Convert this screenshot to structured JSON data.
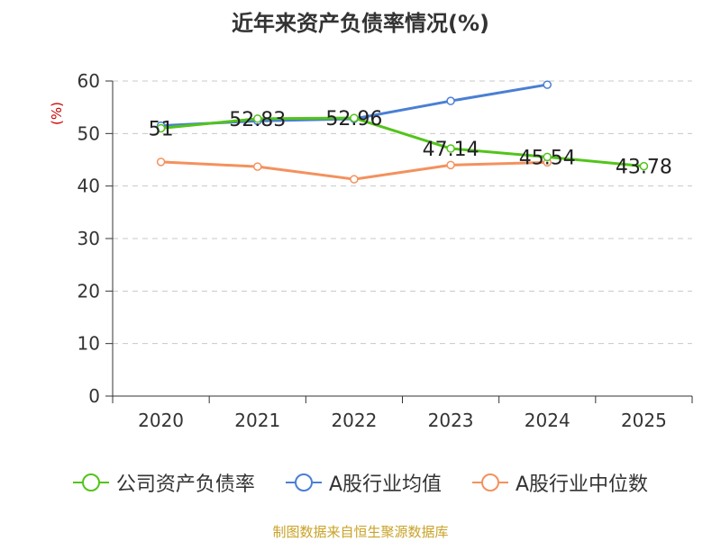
{
  "title": "近年来资产负债率情况(%)",
  "source": "制图数据来自恒生聚源数据库",
  "colors": {
    "company": "#52c41a",
    "industry_avg": "#4a7fd4",
    "industry_median": "#f4915e",
    "ylabel": "#cc0000"
  },
  "chart_data": {
    "type": "line",
    "title": "近年来资产负债率情况(%)",
    "ylabel": "(%)",
    "xlabel": "",
    "categories": [
      "2020",
      "2021",
      "2022",
      "2023",
      "2024",
      "2025"
    ],
    "ylim": [
      0,
      60
    ],
    "yticks": [
      0,
      10,
      20,
      30,
      40,
      50,
      60
    ],
    "grid": true,
    "legend_position": "bottom",
    "series": [
      {
        "name": "公司资产负债率",
        "color": "#52c41a",
        "values": [
          51,
          52.83,
          52.96,
          47.14,
          45.54,
          43.78
        ],
        "labels": [
          "51",
          "52.83",
          "52.96",
          "47.14",
          "45.54",
          "43.78"
        ]
      },
      {
        "name": "A股行业均值",
        "color": "#4a7fd4",
        "values": [
          51.5,
          52.4,
          52.8,
          56.2,
          59.3,
          null
        ]
      },
      {
        "name": "A股行业中位数",
        "color": "#f4915e",
        "values": [
          44.6,
          43.7,
          41.3,
          44.0,
          44.5,
          null
        ]
      }
    ]
  }
}
